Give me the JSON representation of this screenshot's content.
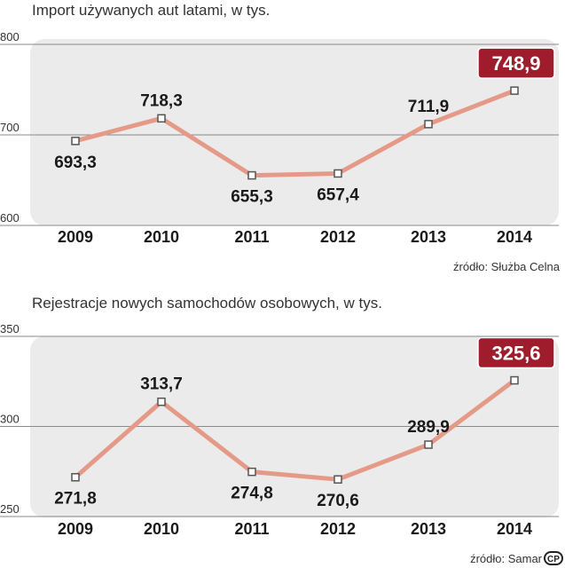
{
  "chart_data": [
    {
      "type": "line",
      "title": "Import używanych aut latami, w tys.",
      "source": "źródło: Służba Celna",
      "categories": [
        "2009",
        "2010",
        "2011",
        "2012",
        "2013",
        "2014"
      ],
      "values": [
        693.3,
        718.3,
        655.3,
        657.4,
        711.9,
        748.9
      ],
      "value_labels": [
        "693,3",
        "718,3",
        "655,3",
        "657,4",
        "711,9",
        "748,9"
      ],
      "label_positions": [
        "below",
        "above",
        "below",
        "below",
        "above",
        "highlight"
      ],
      "ylim": [
        600,
        800
      ],
      "yticks": [
        600,
        700,
        800
      ],
      "ytick_labels": [
        "600",
        "700",
        "800"
      ],
      "grid": true,
      "highlight_index": 5
    },
    {
      "type": "line",
      "title": "Rejestracje nowych samochodów osobowych, w tys.",
      "source": "źródło: Samar",
      "categories": [
        "2009",
        "2010",
        "2011",
        "2012",
        "2013",
        "2014"
      ],
      "values": [
        271.8,
        313.7,
        274.8,
        270.6,
        289.9,
        325.6
      ],
      "value_labels": [
        "271,8",
        "313,7",
        "274,8",
        "270,6",
        "289,9",
        "325,6"
      ],
      "label_positions": [
        "below",
        "above",
        "below",
        "below",
        "above",
        "highlight"
      ],
      "ylim": [
        250,
        350
      ],
      "yticks": [
        250,
        300,
        350
      ],
      "ytick_labels": [
        "250",
        "300",
        "350"
      ],
      "grid": true,
      "highlight_index": 5
    }
  ],
  "logo_text": "CP",
  "colors": {
    "panel": "#ebebeb",
    "line": "#e59a88",
    "highlight": "#9e1c2c",
    "grid": "#8a8a8a",
    "marker_border": "#555555"
  }
}
